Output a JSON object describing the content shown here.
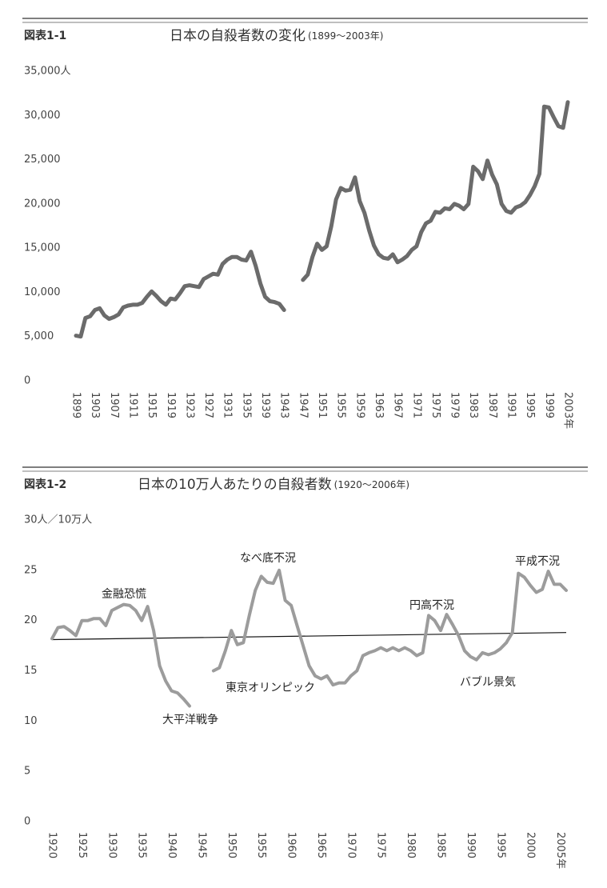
{
  "chart_data": [
    {
      "type": "line",
      "figure_label": "図表1-1",
      "title": "日本の自殺者数の変化",
      "subtitle": "(1899～2003年)",
      "color": "#6b6b6b",
      "grid": false,
      "x": [
        1899,
        1900,
        1901,
        1902,
        1903,
        1904,
        1905,
        1906,
        1907,
        1908,
        1909,
        1910,
        1911,
        1912,
        1913,
        1914,
        1915,
        1916,
        1917,
        1918,
        1919,
        1920,
        1921,
        1922,
        1923,
        1924,
        1925,
        1926,
        1927,
        1928,
        1929,
        1930,
        1931,
        1932,
        1933,
        1934,
        1935,
        1936,
        1937,
        1938,
        1939,
        1940,
        1941,
        1942,
        1943,
        1944,
        1945,
        1946,
        1947,
        1948,
        1949,
        1950,
        1951,
        1952,
        1953,
        1954,
        1955,
        1956,
        1957,
        1958,
        1959,
        1960,
        1961,
        1962,
        1963,
        1964,
        1965,
        1966,
        1967,
        1968,
        1969,
        1970,
        1971,
        1972,
        1973,
        1974,
        1975,
        1976,
        1977,
        1978,
        1979,
        1980,
        1981,
        1982,
        1983,
        1984,
        1985,
        1986,
        1987,
        1988,
        1989,
        1990,
        1991,
        1992,
        1993,
        1994,
        1995,
        1996,
        1997,
        1998,
        1999,
        2000,
        2001,
        2002,
        2003
      ],
      "values": [
        5100,
        5000,
        7100,
        7300,
        8000,
        8200,
        7400,
        7000,
        7200,
        7500,
        8300,
        8500,
        8600,
        8600,
        8800,
        9500,
        10100,
        9600,
        9000,
        8600,
        9300,
        9200,
        9900,
        10700,
        10800,
        10700,
        10600,
        11500,
        11800,
        12100,
        12000,
        13200,
        13700,
        14000,
        14000,
        13700,
        13600,
        14600,
        13000,
        11000,
        9500,
        9000,
        8900,
        8700,
        8000,
        null,
        null,
        null,
        11400,
        12000,
        14000,
        15500,
        14800,
        15200,
        17500,
        20500,
        21800,
        21500,
        21600,
        23000,
        20300,
        19000,
        17000,
        15300,
        14300,
        13900,
        13800,
        14300,
        13400,
        13700,
        14100,
        14800,
        15200,
        16800,
        17800,
        18100,
        19100,
        19000,
        19500,
        19400,
        20000,
        19800,
        19400,
        20000,
        24200,
        23700,
        22800,
        24900,
        23300,
        22200,
        20000,
        19200,
        19000,
        19600,
        19800,
        20200,
        21000,
        22000,
        23400,
        31000,
        30900,
        29800,
        28800,
        28600,
        31500
      ],
      "xlim": [
        1899,
        2003
      ],
      "xticks": [
        1899,
        1903,
        1907,
        1911,
        1915,
        1919,
        1923,
        1927,
        1931,
        1935,
        1939,
        1943,
        1947,
        1951,
        1955,
        1959,
        1963,
        1967,
        1971,
        1975,
        1979,
        1983,
        1987,
        1991,
        1995,
        1999,
        {
          "value": 2003,
          "label": "2003年"
        }
      ],
      "ylim": [
        0,
        35000
      ],
      "yticks": [
        0,
        {
          "value": 5000,
          "label": "5,000"
        },
        {
          "value": 10000,
          "label": "10,000"
        },
        {
          "value": 15000,
          "label": "15,000"
        },
        {
          "value": 20000,
          "label": "20,000"
        },
        {
          "value": 25000,
          "label": "25,000"
        },
        {
          "value": 30000,
          "label": "30,000"
        },
        {
          "value": 35000,
          "label": "35,000人"
        }
      ]
    },
    {
      "type": "line",
      "figure_label": "図表1-2",
      "title": "日本の10万人あたりの自殺者数",
      "subtitle": "(1920～2006年)",
      "color": "#9c9c9c",
      "grid": false,
      "x": [
        1920,
        1921,
        1922,
        1923,
        1924,
        1925,
        1926,
        1927,
        1928,
        1929,
        1930,
        1931,
        1932,
        1933,
        1934,
        1935,
        1936,
        1937,
        1938,
        1939,
        1940,
        1941,
        1942,
        1943,
        1944,
        1945,
        1946,
        1947,
        1948,
        1949,
        1950,
        1951,
        1952,
        1953,
        1954,
        1955,
        1956,
        1957,
        1958,
        1959,
        1960,
        1961,
        1962,
        1963,
        1964,
        1965,
        1966,
        1967,
        1968,
        1969,
        1970,
        1971,
        1972,
        1973,
        1974,
        1975,
        1976,
        1977,
        1978,
        1979,
        1980,
        1981,
        1982,
        1983,
        1984,
        1985,
        1986,
        1987,
        1988,
        1989,
        1990,
        1991,
        1992,
        1993,
        1994,
        1995,
        1996,
        1997,
        1998,
        1999,
        2000,
        2001,
        2002,
        2003,
        2004,
        2005,
        2006
      ],
      "values": [
        18.2,
        19.3,
        19.4,
        19.0,
        18.5,
        20.0,
        20.0,
        20.2,
        20.2,
        19.5,
        21.0,
        21.3,
        21.6,
        21.5,
        21.0,
        20.0,
        21.4,
        19.0,
        15.5,
        14.0,
        13.0,
        12.8,
        12.2,
        11.5,
        null,
        null,
        null,
        15.0,
        15.3,
        17.0,
        19.0,
        17.6,
        17.8,
        20.5,
        23.0,
        24.4,
        23.8,
        23.7,
        25.0,
        22.0,
        21.5,
        19.5,
        17.5,
        15.5,
        14.5,
        14.2,
        14.5,
        13.6,
        13.8,
        13.8,
        14.5,
        15.0,
        16.5,
        16.8,
        17.0,
        17.3,
        17.0,
        17.3,
        17.0,
        17.3,
        17.0,
        16.5,
        16.8,
        20.5,
        20.0,
        19.0,
        20.6,
        19.6,
        18.5,
        17.0,
        16.4,
        16.1,
        16.8,
        16.6,
        16.8,
        17.2,
        17.8,
        18.8,
        24.7,
        24.3,
        23.5,
        22.8,
        23.1,
        24.9,
        23.6,
        23.6,
        23.0
      ],
      "trend": {
        "x": [
          1920,
          2006
        ],
        "values": [
          18.1,
          18.8
        ],
        "color": "#111111"
      },
      "xlim": [
        1920,
        2006
      ],
      "xticks": [
        1920,
        1925,
        1930,
        1935,
        1940,
        1945,
        1950,
        1955,
        1960,
        1965,
        1970,
        1975,
        1980,
        1985,
        1990,
        1995,
        2000,
        {
          "value": 2005,
          "label": "2005年"
        }
      ],
      "ylim": [
        0,
        30
      ],
      "yticks": [
        0,
        5,
        10,
        15,
        20,
        25,
        {
          "value": 30,
          "label": "30人／10万人"
        }
      ],
      "annotations": [
        "金融恐慌",
        "なべ底不況",
        "円高不況",
        "平成不況",
        "大平洋戦争",
        "東京オリンピック",
        "バブル景気"
      ]
    }
  ]
}
